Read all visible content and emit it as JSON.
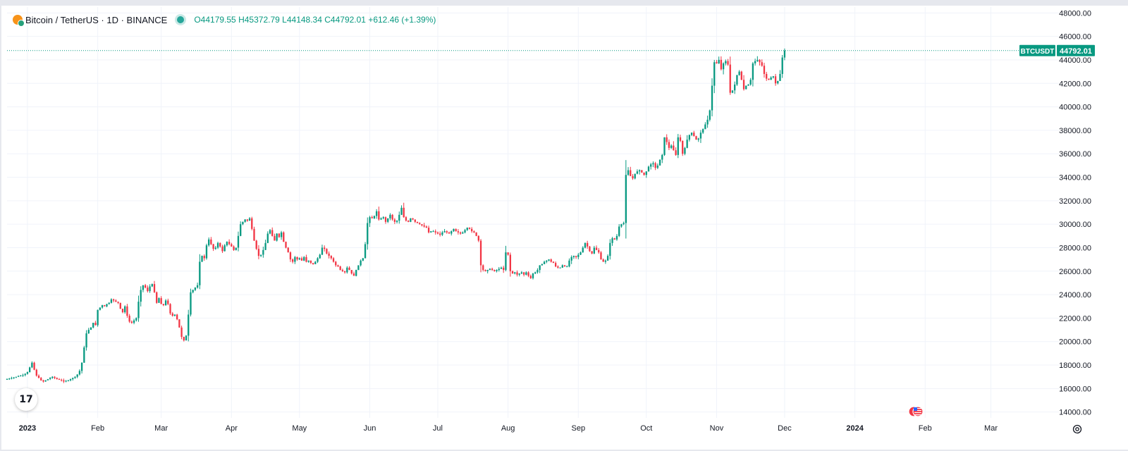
{
  "legend": {
    "symbol_title": "Bitcoin / TetherUS · 1D · BINANCE",
    "open_label": "O",
    "open_value": "44179.55",
    "high_label": "H",
    "high_value": "45372.79",
    "low_label": "L",
    "low_value": "44148.34",
    "close_label": "C",
    "close_value": "44792.01",
    "change": "+612.46 (+1.39%)"
  },
  "price_tag": {
    "symbol": "BTCUSDT",
    "price": "44792.01"
  },
  "logo_text": "17",
  "colors": {
    "up": "#089981",
    "down": "#f23645",
    "grid": "#f0f3fa",
    "text": "#131722"
  },
  "chart_data": {
    "type": "candlestick",
    "title": "Bitcoin / TetherUS · 1D · BINANCE",
    "ylim": [
      13500,
      48500
    ],
    "y_ticks": [
      "14000.00",
      "16000.00",
      "18000.00",
      "20000.00",
      "22000.00",
      "24000.00",
      "26000.00",
      "28000.00",
      "30000.00",
      "32000.00",
      "34000.00",
      "36000.00",
      "38000.00",
      "40000.00",
      "42000.00",
      "44000.00",
      "46000.00",
      "48000.00"
    ],
    "x_ticks": [
      "2023",
      "Feb",
      "Mar",
      "Apr",
      "May",
      "Jun",
      "Jul",
      "Aug",
      "Sep",
      "Oct",
      "Nov",
      "Dec",
      "2024",
      "Feb",
      "Mar"
    ],
    "x_domain": {
      "start": "2022-12-23",
      "end": "2024-03-31"
    },
    "last_price": 44792.01,
    "close_series": {
      "start": "2022-12-23",
      "interval": "1D",
      "values": [
        16800,
        16850,
        16900,
        16950,
        17000,
        17050,
        17100,
        17150,
        17250,
        17400,
        17800,
        18200,
        17600,
        17100,
        16900,
        16700,
        16600,
        16700,
        16800,
        16900,
        17000,
        16900,
        16800,
        16750,
        16700,
        16600,
        16650,
        16700,
        16800,
        16900,
        17000,
        17200,
        17500,
        18200,
        19500,
        20700,
        21000,
        21200,
        21600,
        21400,
        22700,
        22900,
        23100,
        23000,
        23200,
        23300,
        23600,
        23500,
        23400,
        23300,
        22800,
        22500,
        23000,
        22200,
        21700,
        21600,
        21800,
        22000,
        23400,
        24400,
        24800,
        24600,
        24300,
        24700,
        24900,
        24200,
        23300,
        23700,
        23200,
        23100,
        23500,
        23200,
        22400,
        22200,
        22300,
        21900,
        21200,
        20400,
        20100,
        20500,
        22300,
        24200,
        24400,
        24600,
        24800,
        26800,
        27300,
        27100,
        28200,
        28700,
        28300,
        27900,
        28000,
        28400,
        28100,
        27700,
        28200,
        28500,
        28300,
        28100,
        27800,
        28000,
        29000,
        30000,
        30200,
        30400,
        30300,
        30500,
        29600,
        28600,
        27900,
        27300,
        27400,
        27800,
        28400,
        29200,
        29500,
        29000,
        28600,
        29200,
        28900,
        29300,
        28500,
        28000,
        27600,
        27000,
        26800,
        27200,
        27000,
        27100,
        26900,
        27200,
        26800,
        26900,
        26700,
        26600,
        26800,
        27100,
        27400,
        28000,
        27900,
        27500,
        27300,
        27100,
        26800,
        26500,
        26400,
        26100,
        26000,
        25900,
        26300,
        26100,
        25800,
        25600,
        26100,
        26500,
        26900,
        27100,
        28300,
        30100,
        30600,
        30500,
        30700,
        31100,
        30400,
        30500,
        30600,
        30200,
        30500,
        30800,
        30400,
        30200,
        30300,
        30800,
        31400,
        30600,
        30300,
        30200,
        30500,
        30400,
        30200,
        30100,
        30000,
        29900,
        29800,
        29700,
        29300,
        29400,
        29400,
        29300,
        29200,
        29100,
        29300,
        29400,
        29300,
        29200,
        29400,
        29600,
        29400,
        29300,
        29200,
        29300,
        29500,
        29700,
        29600,
        29400,
        29300,
        29000,
        28600,
        26500,
        26100,
        26000,
        26100,
        26200,
        26100,
        26000,
        26100,
        26200,
        26300,
        26100,
        27600,
        27400,
        26000,
        25800,
        25900,
        25700,
        25800,
        25900,
        25700,
        25900,
        25600,
        25400,
        25800,
        25900,
        26100,
        26500,
        26600,
        26800,
        26900,
        27000,
        26800,
        26700,
        26400,
        26300,
        26300,
        26500,
        26400,
        26400,
        26900,
        27200,
        27300,
        27200,
        27400,
        27600,
        28000,
        28400,
        28100,
        27700,
        27500,
        28000,
        27800,
        27600,
        27000,
        26800,
        26900,
        27300,
        28400,
        28800,
        28700,
        29000,
        29800,
        30000,
        30100,
        34200,
        34600,
        34100,
        33900,
        34300,
        34500,
        34600,
        34400,
        34200,
        34500,
        34900,
        35100,
        35200,
        34800,
        35000,
        35500,
        35900,
        37400,
        37000,
        36500,
        36700,
        36300,
        35900,
        37400,
        37100,
        36000,
        36500,
        37200,
        37600,
        37800,
        37500,
        37200,
        37300,
        37800,
        38100,
        38500,
        38900,
        39700,
        41800,
        43800,
        43700,
        44000,
        43200,
        43700,
        43900,
        43600,
        41200,
        41400,
        41900,
        42700,
        43000,
        42300,
        41500,
        41800,
        41900,
        42300,
        43700,
        43900,
        44000,
        43800,
        43500,
        42800,
        42400,
        42300,
        42500,
        42600,
        42000,
        42200,
        42800,
        44200,
        44792.01
      ]
    }
  }
}
